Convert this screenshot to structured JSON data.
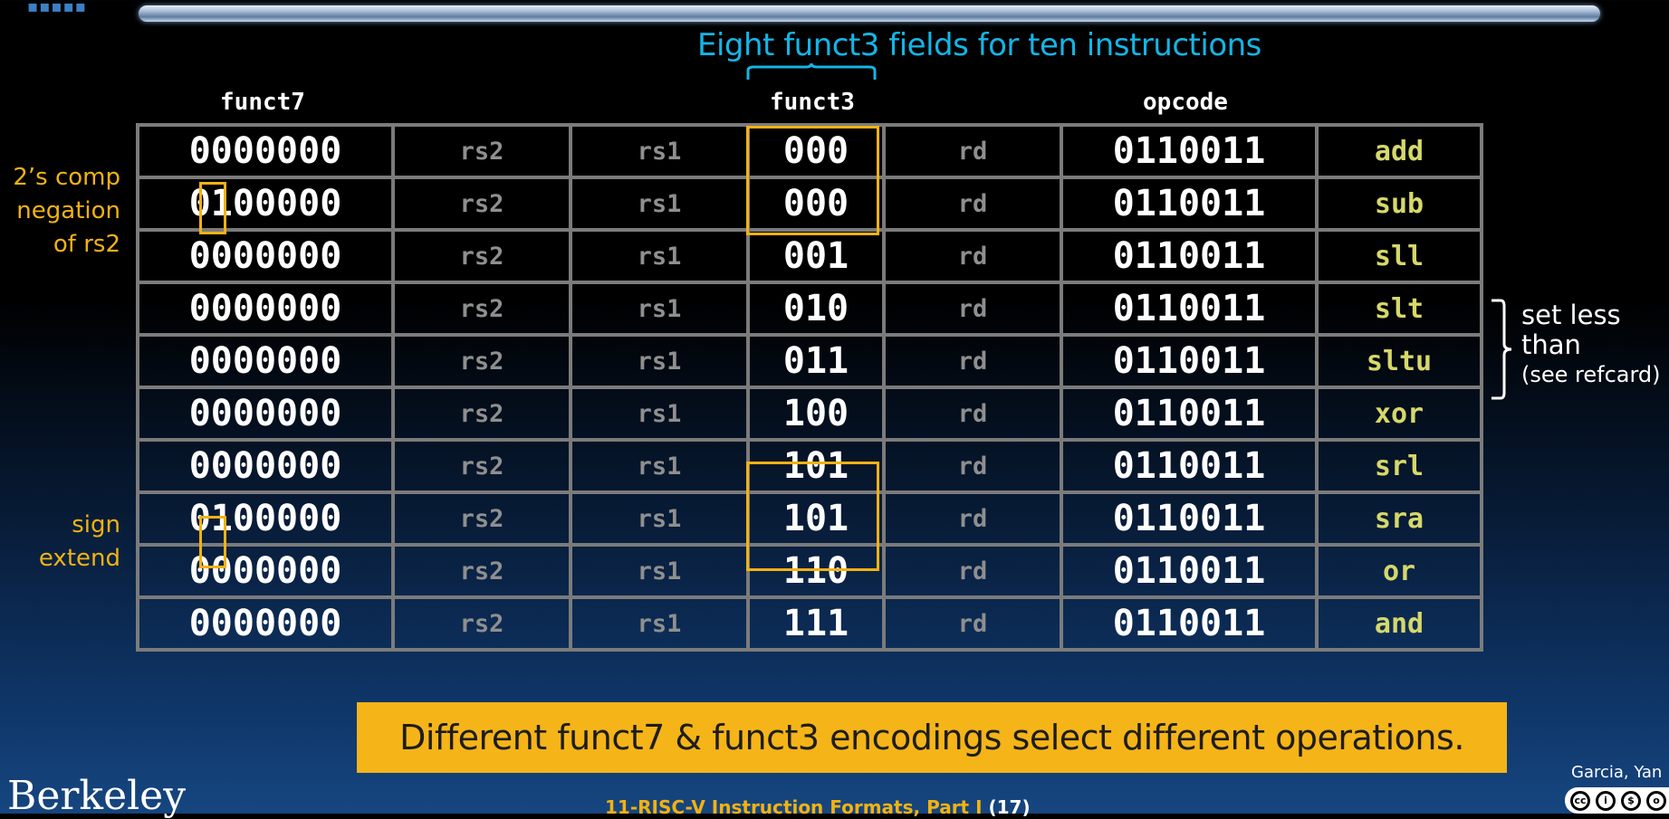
{
  "header": {
    "annotation": "Eight funct3 fields for ten instructions"
  },
  "columns": {
    "funct7": "funct7",
    "funct3": "funct3",
    "opcode": "opcode"
  },
  "rows": [
    {
      "funct7": "0000000",
      "rs2": "rs2",
      "rs1": "rs1",
      "funct3": "000",
      "rd": "rd",
      "opcode": "0110011",
      "name": "add"
    },
    {
      "funct7": "0100000",
      "rs2": "rs2",
      "rs1": "rs1",
      "funct3": "000",
      "rd": "rd",
      "opcode": "0110011",
      "name": "sub"
    },
    {
      "funct7": "0000000",
      "rs2": "rs2",
      "rs1": "rs1",
      "funct3": "001",
      "rd": "rd",
      "opcode": "0110011",
      "name": "sll"
    },
    {
      "funct7": "0000000",
      "rs2": "rs2",
      "rs1": "rs1",
      "funct3": "010",
      "rd": "rd",
      "opcode": "0110011",
      "name": "slt"
    },
    {
      "funct7": "0000000",
      "rs2": "rs2",
      "rs1": "rs1",
      "funct3": "011",
      "rd": "rd",
      "opcode": "0110011",
      "name": "sltu"
    },
    {
      "funct7": "0000000",
      "rs2": "rs2",
      "rs1": "rs1",
      "funct3": "100",
      "rd": "rd",
      "opcode": "0110011",
      "name": "xor"
    },
    {
      "funct7": "0000000",
      "rs2": "rs2",
      "rs1": "rs1",
      "funct3": "101",
      "rd": "rd",
      "opcode": "0110011",
      "name": "srl"
    },
    {
      "funct7": "0100000",
      "rs2": "rs2",
      "rs1": "rs1",
      "funct3": "101",
      "rd": "rd",
      "opcode": "0110011",
      "name": "sra"
    },
    {
      "funct7": "0000000",
      "rs2": "rs2",
      "rs1": "rs1",
      "funct3": "110",
      "rd": "rd",
      "opcode": "0110011",
      "name": "or"
    },
    {
      "funct7": "0000000",
      "rs2": "rs2",
      "rs1": "rs1",
      "funct3": "111",
      "rd": "rd",
      "opcode": "0110011",
      "name": "and"
    }
  ],
  "notes": {
    "negation_line1": "2’s comp",
    "negation_line2": "negation",
    "negation_line3": "of rs2",
    "sign_line1": "sign",
    "sign_line2": "extend",
    "slt_line1": "set less",
    "slt_line2": "than",
    "slt_line3": "(see refcard)"
  },
  "banner": "Different funct7 & funct3 encodings select different operations.",
  "footer": {
    "logo": "Berkeley",
    "lecture": "11-RISC-V Instruction Formats, Part I",
    "page": "(17)",
    "author": "Garcia, Yan"
  },
  "colors": {
    "highlight": "#f2b213",
    "annotation_blue": "#14b5e6",
    "mnemonic": "#d6d86a",
    "grid": "#7b7b7b"
  },
  "icons": {
    "top_left": "berkeley-dots-logo-icon",
    "license": "creative-commons-license-icon"
  }
}
